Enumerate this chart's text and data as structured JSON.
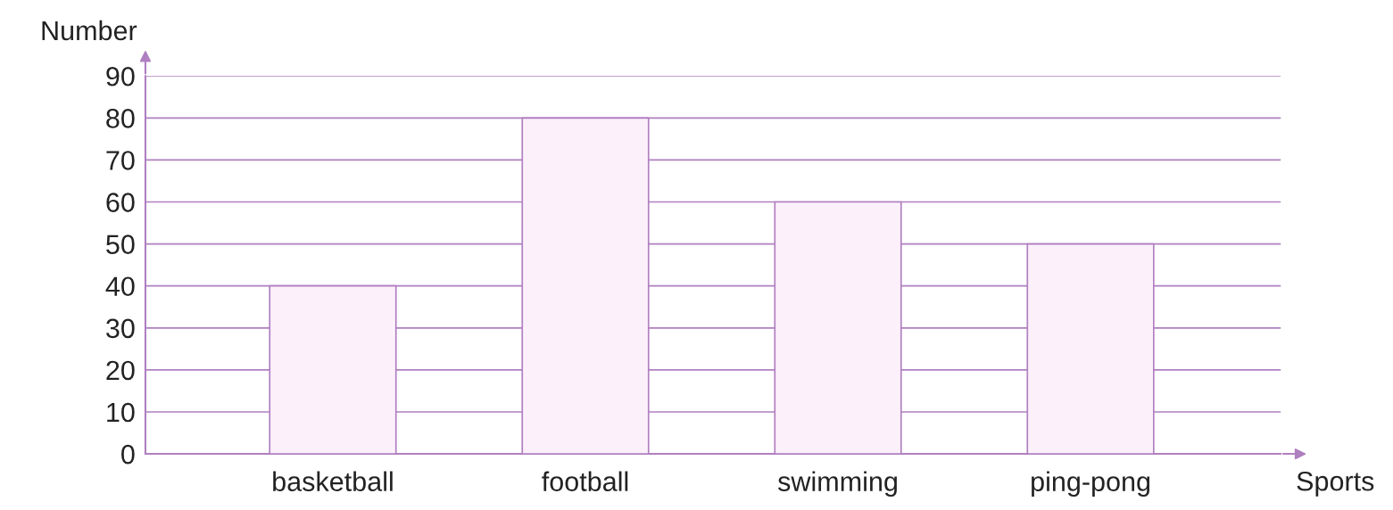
{
  "chart_data": {
    "type": "bar",
    "xlabel": "Sports",
    "ylabel": "Number",
    "categories": [
      "basketball",
      "football",
      "swimming",
      "ping-pong"
    ],
    "values": [
      40,
      80,
      60,
      50
    ],
    "color": "#fcf0fb",
    "ylim": [
      0,
      90
    ],
    "yticks": [
      0,
      10,
      20,
      30,
      40,
      50,
      60,
      70,
      80,
      90
    ],
    "grid": "y",
    "legend": false
  }
}
